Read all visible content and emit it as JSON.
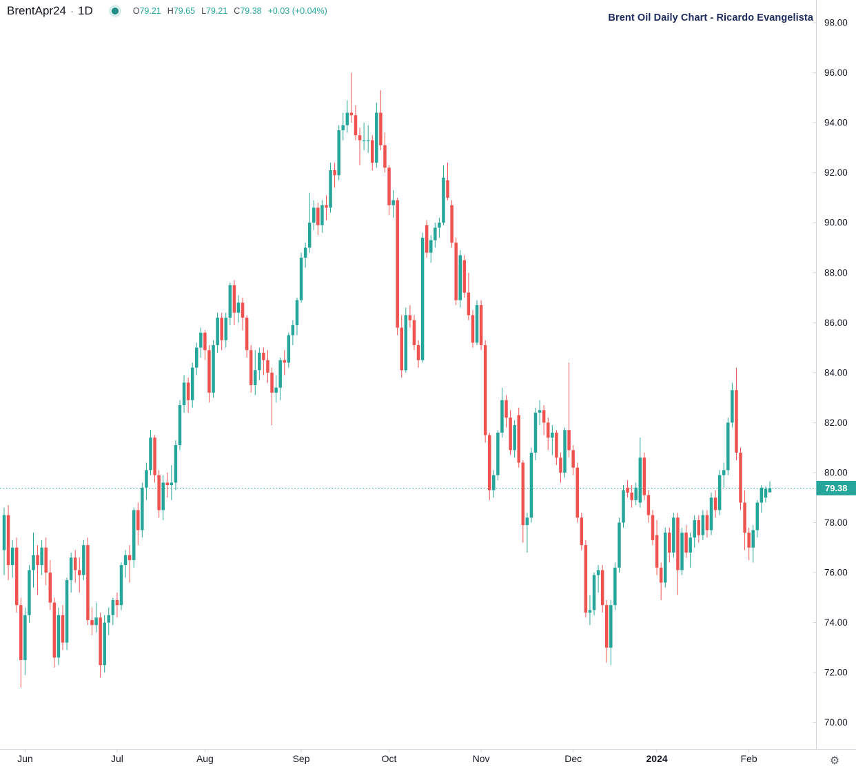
{
  "legend": {
    "symbol": "BrentApr24",
    "separator": "·",
    "interval": "1D",
    "o_label": "O",
    "o_value": "79.21",
    "h_label": "H",
    "h_value": "79.65",
    "l_label": "L",
    "l_value": "79.21",
    "c_label": "C",
    "c_value": "79.38",
    "change": "+0.03 (+0.04%)"
  },
  "watermark_title": "Brent Oil Daily Chart - Ricardo Evangelista",
  "icons": {
    "gear": "⚙"
  },
  "colors": {
    "up": "#26a69a",
    "down": "#ef5350",
    "axis_line": "#d1d4dc",
    "axis_text": "#131722",
    "price_line": "#26a69a",
    "tag_bg": "#26a69a",
    "tag_text": "#ffffff",
    "background": "#ffffff"
  },
  "price_axis": {
    "labels": [
      "98.00",
      "96.00",
      "94.00",
      "92.00",
      "90.00",
      "88.00",
      "86.00",
      "84.00",
      "82.00",
      "80.00",
      "78.00",
      "76.00",
      "74.00",
      "72.00",
      "70.00"
    ],
    "last_price_label": "79.38"
  },
  "time_axis": {
    "labels": [
      {
        "text": "Jun",
        "index": 5,
        "bold": false
      },
      {
        "text": "Jul",
        "index": 27,
        "bold": false
      },
      {
        "text": "Aug",
        "index": 48,
        "bold": false
      },
      {
        "text": "Sep",
        "index": 71,
        "bold": false
      },
      {
        "text": "Oct",
        "index": 92,
        "bold": false
      },
      {
        "text": "Nov",
        "index": 114,
        "bold": false
      },
      {
        "text": "Dec",
        "index": 136,
        "bold": false
      },
      {
        "text": "2024",
        "index": 156,
        "bold": true
      },
      {
        "text": "Feb",
        "index": 178,
        "bold": false
      }
    ]
  },
  "chart_data": {
    "type": "candlestick",
    "title": "Brent Oil Daily Chart - Ricardo Evangelista",
    "symbol": "BrentApr24",
    "interval": "1D",
    "legend_position": "top-left",
    "grid": false,
    "ylim": [
      69.5,
      98.9
    ],
    "y_tick_step": 2,
    "y_tick_range": [
      70,
      98
    ],
    "x_range": "late May 2023 - Feb 8 2024 (daily)",
    "last_price": 79.38,
    "last_change": "+0.03 (+0.04%)",
    "candles_format": [
      "open",
      "high",
      "low",
      "close"
    ],
    "candles": [
      [
        76.9,
        78.6,
        75.9,
        78.3
      ],
      [
        78.3,
        78.7,
        75.7,
        76.3
      ],
      [
        76.3,
        77.3,
        75.8,
        77.0
      ],
      [
        77.0,
        77.4,
        74.4,
        74.7
      ],
      [
        74.7,
        75.0,
        71.4,
        72.5
      ],
      [
        72.5,
        74.6,
        71.9,
        74.3
      ],
      [
        74.3,
        76.3,
        74.0,
        76.1
      ],
      [
        76.1,
        77.6,
        75.4,
        76.7
      ],
      [
        76.7,
        77.1,
        75.1,
        76.3
      ],
      [
        76.3,
        77.3,
        75.9,
        77.0
      ],
      [
        77.0,
        77.4,
        75.5,
        76.0
      ],
      [
        76.0,
        76.5,
        74.5,
        74.8
      ],
      [
        74.8,
        75.0,
        72.2,
        72.6
      ],
      [
        72.6,
        74.6,
        72.3,
        74.3
      ],
      [
        74.3,
        74.7,
        72.9,
        73.2
      ],
      [
        73.2,
        75.8,
        72.9,
        75.7
      ],
      [
        75.7,
        76.8,
        75.2,
        76.6
      ],
      [
        76.6,
        76.9,
        75.6,
        76.1
      ],
      [
        76.1,
        76.6,
        75.2,
        75.9
      ],
      [
        75.9,
        77.3,
        75.7,
        77.1
      ],
      [
        77.1,
        77.4,
        73.9,
        74.1
      ],
      [
        74.1,
        74.6,
        73.5,
        73.9
      ],
      [
        73.9,
        74.8,
        73.6,
        74.2
      ],
      [
        74.2,
        74.4,
        71.8,
        72.3
      ],
      [
        72.3,
        74.3,
        72.0,
        74.0
      ],
      [
        74.0,
        74.6,
        73.5,
        74.3
      ],
      [
        74.3,
        75.0,
        73.9,
        74.9
      ],
      [
        74.9,
        75.2,
        74.2,
        74.7
      ],
      [
        74.7,
        76.4,
        74.5,
        76.3
      ],
      [
        76.3,
        76.9,
        75.8,
        76.7
      ],
      [
        76.7,
        77.1,
        75.6,
        76.5
      ],
      [
        76.5,
        78.6,
        76.2,
        78.5
      ],
      [
        78.5,
        78.8,
        77.1,
        77.7
      ],
      [
        77.7,
        79.6,
        77.4,
        79.4
      ],
      [
        79.4,
        80.4,
        78.9,
        80.1
      ],
      [
        80.1,
        81.7,
        79.9,
        81.4
      ],
      [
        81.4,
        81.5,
        79.6,
        79.9
      ],
      [
        79.9,
        80.1,
        78.2,
        78.5
      ],
      [
        78.5,
        79.9,
        78.1,
        79.6
      ],
      [
        79.6,
        80.0,
        79.0,
        79.5
      ],
      [
        79.5,
        80.3,
        78.9,
        79.6
      ],
      [
        79.6,
        81.3,
        79.3,
        81.1
      ],
      [
        81.1,
        82.9,
        80.9,
        82.7
      ],
      [
        82.7,
        83.9,
        82.4,
        83.6
      ],
      [
        83.6,
        83.8,
        82.4,
        82.9
      ],
      [
        82.9,
        84.4,
        82.6,
        84.2
      ],
      [
        84.2,
        85.2,
        83.9,
        85.0
      ],
      [
        85.0,
        85.8,
        84.6,
        85.6
      ],
      [
        85.6,
        85.7,
        84.5,
        84.9
      ],
      [
        84.9,
        85.1,
        82.8,
        83.2
      ],
      [
        83.2,
        85.3,
        83.0,
        85.1
      ],
      [
        85.1,
        86.4,
        84.8,
        86.2
      ],
      [
        86.2,
        86.4,
        84.9,
        85.3
      ],
      [
        85.3,
        86.4,
        85.0,
        86.2
      ],
      [
        86.2,
        87.6,
        85.9,
        87.5
      ],
      [
        87.5,
        87.7,
        85.9,
        86.4
      ],
      [
        86.4,
        87.1,
        86.0,
        86.8
      ],
      [
        86.8,
        87.0,
        85.7,
        86.2
      ],
      [
        86.2,
        86.3,
        84.6,
        84.9
      ],
      [
        84.9,
        85.1,
        83.2,
        83.5
      ],
      [
        83.5,
        84.9,
        83.1,
        84.1
      ],
      [
        84.1,
        85.0,
        83.7,
        84.8
      ],
      [
        84.8,
        85.0,
        83.9,
        84.5
      ],
      [
        84.5,
        84.9,
        83.6,
        84.0
      ],
      [
        84.0,
        84.2,
        81.9,
        83.2
      ],
      [
        83.2,
        83.9,
        82.8,
        83.4
      ],
      [
        83.4,
        84.6,
        82.9,
        84.5
      ],
      [
        84.5,
        84.9,
        83.9,
        84.4
      ],
      [
        84.4,
        85.6,
        84.2,
        85.5
      ],
      [
        85.5,
        86.1,
        85.1,
        85.9
      ],
      [
        85.9,
        87.0,
        85.5,
        86.9
      ],
      [
        86.9,
        88.8,
        86.8,
        88.6
      ],
      [
        88.6,
        89.2,
        88.2,
        89.0
      ],
      [
        89.0,
        91.2,
        88.8,
        90.0
      ],
      [
        90.0,
        90.9,
        89.7,
        90.6
      ],
      [
        90.6,
        90.8,
        89.5,
        89.9
      ],
      [
        89.9,
        90.9,
        89.6,
        90.7
      ],
      [
        90.7,
        91.1,
        90.1,
        90.6
      ],
      [
        90.6,
        92.4,
        90.4,
        92.1
      ],
      [
        92.1,
        92.4,
        91.4,
        91.9
      ],
      [
        91.9,
        93.9,
        91.7,
        93.7
      ],
      [
        93.7,
        94.4,
        93.3,
        93.9
      ],
      [
        93.9,
        94.9,
        93.6,
        94.4
      ],
      [
        94.4,
        96.0,
        94.0,
        94.3
      ],
      [
        94.3,
        94.7,
        93.3,
        93.5
      ],
      [
        93.5,
        93.8,
        92.3,
        93.3
      ],
      [
        93.3,
        94.0,
        92.9,
        93.3
      ],
      [
        93.3,
        93.9,
        92.8,
        93.3
      ],
      [
        93.3,
        93.5,
        92.1,
        92.4
      ],
      [
        92.4,
        94.8,
        92.2,
        94.4
      ],
      [
        94.4,
        95.3,
        92.9,
        93.1
      ],
      [
        93.1,
        93.6,
        92.0,
        92.2
      ],
      [
        92.2,
        92.3,
        90.3,
        90.7
      ],
      [
        90.7,
        91.3,
        90.2,
        90.9
      ],
      [
        90.9,
        91.0,
        85.5,
        85.8
      ],
      [
        85.8,
        86.3,
        83.8,
        84.1
      ],
      [
        84.1,
        86.6,
        84.0,
        86.3
      ],
      [
        86.3,
        86.7,
        85.8,
        86.1
      ],
      [
        86.1,
        86.3,
        84.9,
        85.1
      ],
      [
        85.1,
        85.3,
        84.2,
        84.5
      ],
      [
        84.5,
        89.6,
        84.4,
        89.4
      ],
      [
        89.9,
        90.1,
        88.6,
        88.8
      ],
      [
        88.8,
        89.5,
        88.4,
        89.3
      ],
      [
        89.3,
        90.0,
        89.0,
        89.8
      ],
      [
        89.8,
        90.2,
        89.4,
        90.0
      ],
      [
        90.0,
        92.3,
        89.9,
        91.8
      ],
      [
        91.7,
        92.4,
        90.9,
        91.0
      ],
      [
        90.7,
        90.9,
        89.0,
        89.2
      ],
      [
        89.2,
        89.4,
        86.7,
        86.9
      ],
      [
        86.9,
        88.9,
        86.6,
        88.7
      ],
      [
        88.5,
        88.7,
        87.0,
        87.2
      ],
      [
        87.2,
        88.0,
        86.1,
        86.3
      ],
      [
        86.3,
        86.5,
        85.0,
        85.2
      ],
      [
        85.2,
        86.9,
        85.1,
        86.7
      ],
      [
        86.7,
        86.9,
        84.9,
        85.1
      ],
      [
        85.1,
        85.3,
        81.2,
        81.5
      ],
      [
        81.5,
        81.6,
        78.9,
        79.3
      ],
      [
        79.3,
        80.1,
        79.0,
        79.9
      ],
      [
        79.9,
        81.7,
        79.7,
        81.6
      ],
      [
        81.6,
        83.4,
        81.4,
        82.9
      ],
      [
        82.9,
        83.1,
        81.8,
        82.2
      ],
      [
        82.2,
        82.5,
        80.7,
        80.9
      ],
      [
        80.9,
        82.1,
        80.6,
        81.9
      ],
      [
        82.3,
        82.6,
        80.2,
        80.4
      ],
      [
        80.4,
        80.5,
        77.2,
        77.9
      ],
      [
        77.9,
        78.4,
        76.8,
        78.2
      ],
      [
        78.2,
        81.0,
        78.0,
        80.8
      ],
      [
        80.8,
        82.6,
        80.5,
        82.4
      ],
      [
        82.4,
        82.9,
        81.9,
        82.5
      ],
      [
        82.5,
        82.7,
        81.5,
        82.0
      ],
      [
        82.0,
        82.2,
        80.9,
        81.4
      ],
      [
        81.4,
        81.9,
        80.7,
        81.6
      ],
      [
        81.6,
        81.7,
        80.3,
        80.6
      ],
      [
        80.6,
        80.8,
        79.6,
        80.0
      ],
      [
        80.0,
        81.8,
        79.8,
        81.7
      ],
      [
        81.7,
        84.4,
        80.6,
        80.9
      ],
      [
        80.9,
        81.1,
        79.9,
        80.2
      ],
      [
        80.2,
        80.4,
        78.0,
        78.2
      ],
      [
        78.2,
        78.4,
        76.9,
        77.1
      ],
      [
        77.1,
        77.3,
        74.2,
        74.4
      ],
      [
        74.4,
        75.1,
        73.9,
        74.5
      ],
      [
        74.5,
        76.0,
        74.3,
        75.9
      ],
      [
        75.9,
        76.3,
        75.2,
        76.1
      ],
      [
        76.1,
        76.3,
        74.4,
        74.7
      ],
      [
        74.7,
        74.9,
        72.4,
        73.0
      ],
      [
        73.0,
        74.9,
        72.3,
        74.7
      ],
      [
        74.7,
        76.4,
        74.5,
        76.2
      ],
      [
        76.2,
        78.2,
        76.0,
        78.0
      ],
      [
        78.0,
        79.5,
        77.8,
        79.3
      ],
      [
        79.4,
        79.7,
        79.0,
        79.2
      ],
      [
        79.2,
        79.5,
        78.6,
        78.9
      ],
      [
        78.9,
        79.6,
        78.7,
        79.4
      ],
      [
        78.8,
        81.4,
        78.6,
        80.6
      ],
      [
        80.6,
        80.8,
        78.9,
        79.1
      ],
      [
        79.1,
        79.3,
        78.0,
        78.3
      ],
      [
        78.3,
        78.5,
        77.1,
        77.3
      ],
      [
        77.5,
        78.1,
        75.9,
        76.2
      ],
      [
        76.2,
        76.4,
        74.9,
        75.6
      ],
      [
        75.6,
        77.8,
        75.4,
        77.6
      ],
      [
        77.6,
        77.8,
        76.4,
        76.8
      ],
      [
        76.8,
        78.4,
        76.6,
        78.2
      ],
      [
        78.2,
        78.4,
        75.1,
        76.1
      ],
      [
        76.1,
        77.8,
        75.9,
        77.6
      ],
      [
        77.6,
        77.9,
        76.6,
        76.8
      ],
      [
        76.8,
        77.6,
        76.2,
        77.4
      ],
      [
        77.4,
        78.3,
        77.0,
        78.1
      ],
      [
        78.1,
        78.3,
        77.2,
        77.5
      ],
      [
        77.5,
        78.5,
        77.3,
        78.3
      ],
      [
        78.3,
        78.5,
        77.4,
        77.7
      ],
      [
        77.7,
        79.2,
        77.5,
        79.0
      ],
      [
        79.0,
        79.3,
        78.2,
        78.5
      ],
      [
        78.5,
        80.1,
        78.3,
        79.9
      ],
      [
        79.9,
        80.4,
        79.4,
        80.1
      ],
      [
        80.1,
        82.2,
        79.9,
        82.0
      ],
      [
        82.0,
        83.6,
        81.8,
        83.3
      ],
      [
        83.3,
        84.2,
        80.5,
        80.8
      ],
      [
        80.8,
        81.0,
        78.5,
        78.8
      ],
      [
        78.8,
        79.3,
        76.9,
        77.6
      ],
      [
        77.6,
        77.8,
        76.5,
        77.0
      ],
      [
        77.0,
        77.9,
        76.4,
        77.7
      ],
      [
        77.7,
        78.9,
        77.4,
        78.8
      ],
      [
        78.8,
        79.5,
        78.4,
        79.4
      ],
      [
        79.0,
        79.45,
        78.8,
        79.35
      ],
      [
        79.21,
        79.65,
        79.21,
        79.38
      ]
    ]
  }
}
